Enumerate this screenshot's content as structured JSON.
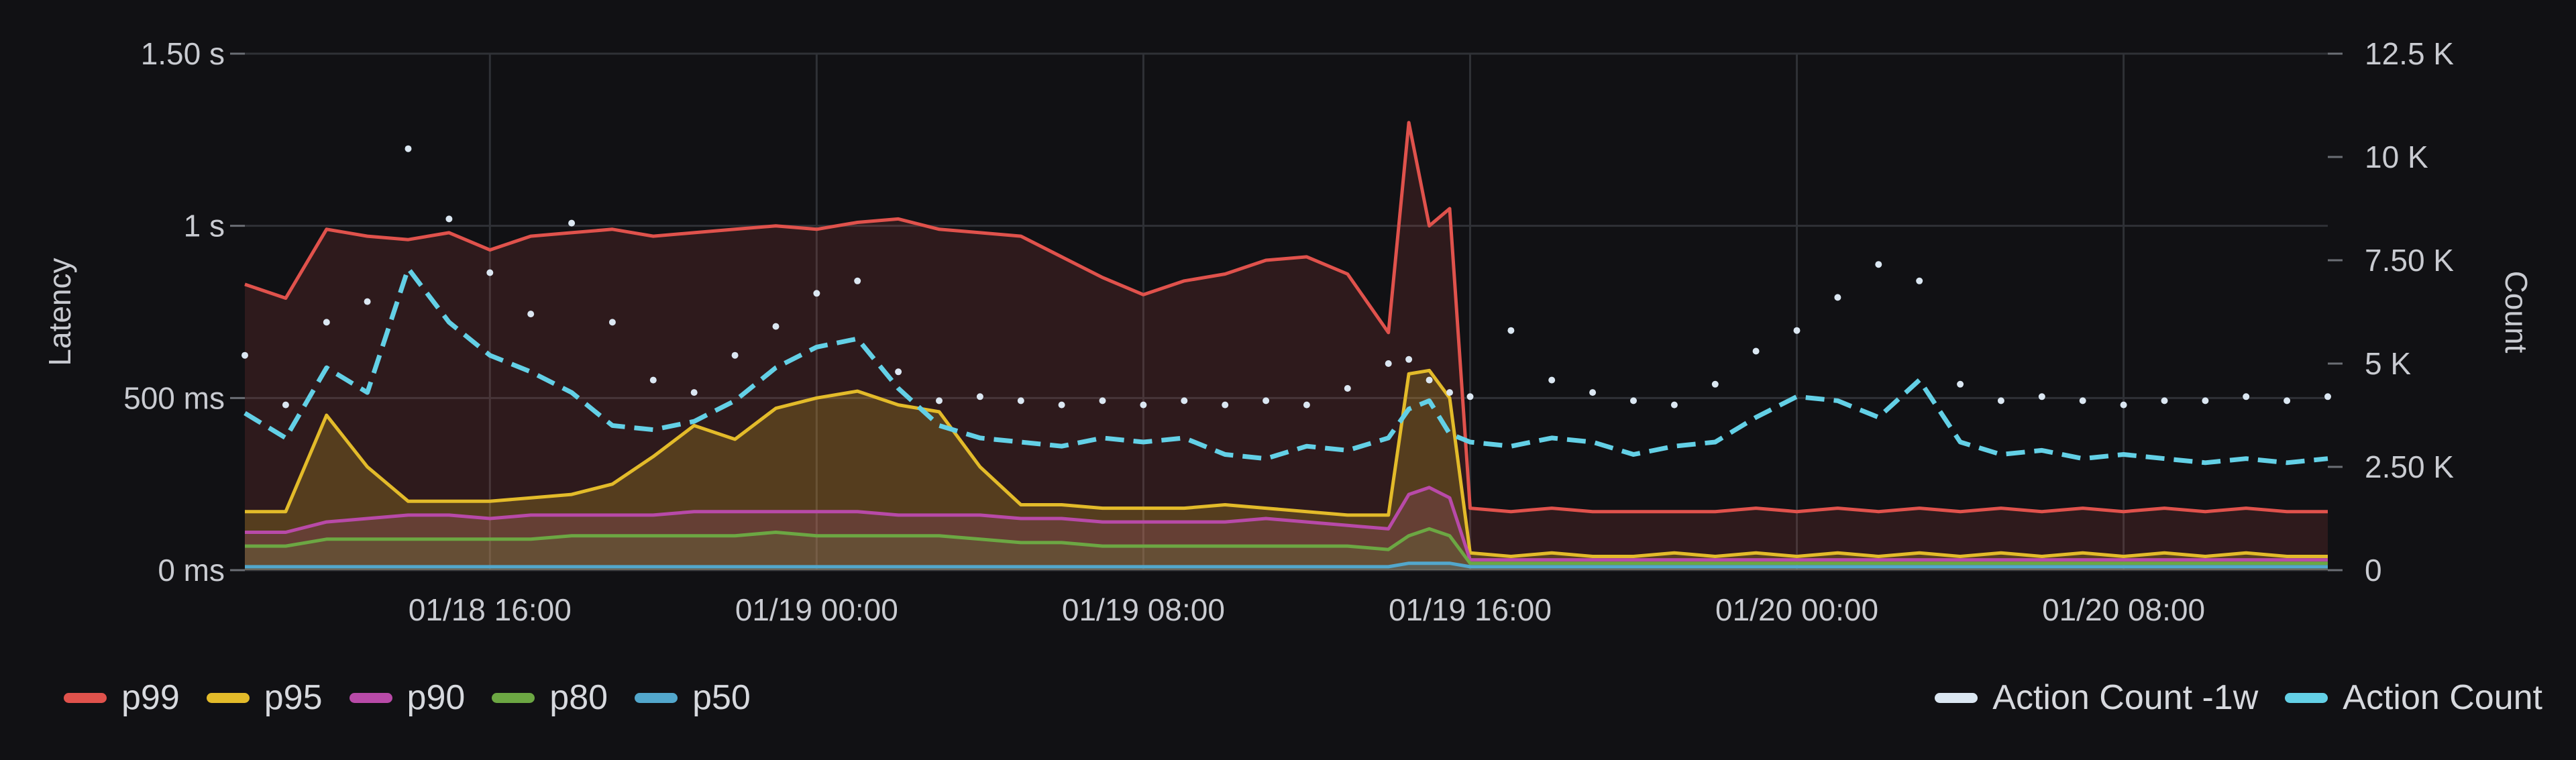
{
  "chart_data": {
    "type": "line",
    "xlabel": "",
    "ylabel": "Latency",
    "y2label": "Count",
    "grid": true,
    "legend_position": "bottom",
    "x_range": [
      "01/18 10:00",
      "01/20 12:00"
    ],
    "ylim": [
      0,
      1.5
    ],
    "y2lim": [
      0,
      12500
    ],
    "y_ticks": [
      {
        "value": 0,
        "label": "0 ms"
      },
      {
        "value": 0.5,
        "label": "500 ms"
      },
      {
        "value": 1.0,
        "label": "1 s"
      },
      {
        "value": 1.5,
        "label": "1.50 s"
      }
    ],
    "y2_ticks": [
      {
        "value": 0,
        "label": "0"
      },
      {
        "value": 2500,
        "label": "2.50 K"
      },
      {
        "value": 5000,
        "label": "5 K"
      },
      {
        "value": 7500,
        "label": "7.50 K"
      },
      {
        "value": 10000,
        "label": "10 K"
      },
      {
        "value": 12500,
        "label": "12.5 K"
      }
    ],
    "x_ticks": [
      {
        "value": 6,
        "label": "01/18 16:00"
      },
      {
        "value": 14,
        "label": "01/19 00:00"
      },
      {
        "value": 22,
        "label": "01/19 08:00"
      },
      {
        "value": 30,
        "label": "01/19 16:00"
      },
      {
        "value": 38,
        "label": "01/20 00:00"
      },
      {
        "value": 46,
        "label": "01/20 08:00"
      }
    ],
    "x": [
      0,
      1,
      2,
      3,
      4,
      5,
      6,
      7,
      8,
      9,
      10,
      11,
      12,
      13,
      14,
      15,
      16,
      17,
      18,
      19,
      20,
      21,
      22,
      23,
      24,
      25,
      26,
      27,
      28,
      28.5,
      29,
      29.5,
      30,
      31,
      32,
      33,
      34,
      35,
      36,
      37,
      38,
      39,
      40,
      41,
      42,
      43,
      44,
      45,
      46,
      47,
      48,
      49,
      50,
      51
    ],
    "series": [
      {
        "name": "p99",
        "axis": "left",
        "color": "#e0524c",
        "values": [
          0.83,
          0.79,
          0.99,
          0.97,
          0.96,
          0.98,
          0.93,
          0.97,
          0.98,
          0.99,
          0.97,
          0.98,
          0.99,
          1.0,
          0.99,
          1.01,
          1.02,
          0.99,
          0.98,
          0.97,
          0.91,
          0.85,
          0.8,
          0.84,
          0.86,
          0.9,
          0.91,
          0.86,
          0.69,
          1.3,
          1.0,
          1.05,
          0.18,
          0.17,
          0.18,
          0.17,
          0.17,
          0.17,
          0.17,
          0.18,
          0.17,
          0.18,
          0.17,
          0.18,
          0.17,
          0.18,
          0.17,
          0.18,
          0.17,
          0.18,
          0.17,
          0.18,
          0.17,
          0.17
        ]
      },
      {
        "name": "p95",
        "axis": "left",
        "color": "#e3bb2a",
        "values": [
          0.17,
          0.17,
          0.45,
          0.3,
          0.2,
          0.2,
          0.2,
          0.21,
          0.22,
          0.25,
          0.33,
          0.42,
          0.38,
          0.47,
          0.5,
          0.52,
          0.48,
          0.46,
          0.3,
          0.19,
          0.19,
          0.18,
          0.18,
          0.18,
          0.19,
          0.18,
          0.17,
          0.16,
          0.16,
          0.57,
          0.58,
          0.5,
          0.05,
          0.04,
          0.05,
          0.04,
          0.04,
          0.05,
          0.04,
          0.05,
          0.04,
          0.05,
          0.04,
          0.05,
          0.04,
          0.05,
          0.04,
          0.05,
          0.04,
          0.05,
          0.04,
          0.05,
          0.04,
          0.04
        ]
      },
      {
        "name": "p90",
        "axis": "left",
        "color": "#b84aa8",
        "values": [
          0.11,
          0.11,
          0.14,
          0.15,
          0.16,
          0.16,
          0.15,
          0.16,
          0.16,
          0.16,
          0.16,
          0.17,
          0.17,
          0.17,
          0.17,
          0.17,
          0.16,
          0.16,
          0.16,
          0.15,
          0.15,
          0.14,
          0.14,
          0.14,
          0.14,
          0.15,
          0.14,
          0.13,
          0.12,
          0.22,
          0.24,
          0.21,
          0.03,
          0.03,
          0.03,
          0.03,
          0.03,
          0.03,
          0.03,
          0.03,
          0.03,
          0.03,
          0.03,
          0.03,
          0.03,
          0.03,
          0.03,
          0.03,
          0.03,
          0.03,
          0.03,
          0.03,
          0.03,
          0.03
        ]
      },
      {
        "name": "p80",
        "axis": "left",
        "color": "#6ca743",
        "values": [
          0.07,
          0.07,
          0.09,
          0.09,
          0.09,
          0.09,
          0.09,
          0.09,
          0.1,
          0.1,
          0.1,
          0.1,
          0.1,
          0.11,
          0.1,
          0.1,
          0.1,
          0.1,
          0.09,
          0.08,
          0.08,
          0.07,
          0.07,
          0.07,
          0.07,
          0.07,
          0.07,
          0.07,
          0.06,
          0.1,
          0.12,
          0.1,
          0.02,
          0.02,
          0.02,
          0.02,
          0.02,
          0.02,
          0.02,
          0.02,
          0.02,
          0.02,
          0.02,
          0.02,
          0.02,
          0.02,
          0.02,
          0.02,
          0.02,
          0.02,
          0.02,
          0.02,
          0.02,
          0.02
        ]
      },
      {
        "name": "p50",
        "axis": "left",
        "color": "#52a7cc",
        "values": [
          0.01,
          0.01,
          0.01,
          0.01,
          0.01,
          0.01,
          0.01,
          0.01,
          0.01,
          0.01,
          0.01,
          0.01,
          0.01,
          0.01,
          0.01,
          0.01,
          0.01,
          0.01,
          0.01,
          0.01,
          0.01,
          0.01,
          0.01,
          0.01,
          0.01,
          0.01,
          0.01,
          0.01,
          0.01,
          0.02,
          0.02,
          0.02,
          0.01,
          0.01,
          0.01,
          0.01,
          0.01,
          0.01,
          0.01,
          0.01,
          0.01,
          0.01,
          0.01,
          0.01,
          0.01,
          0.01,
          0.01,
          0.01,
          0.01,
          0.01,
          0.01,
          0.01,
          0.01,
          0.01
        ]
      },
      {
        "name": "Action Count -1w",
        "axis": "right",
        "color": "#dbe7f2",
        "style": "dotted",
        "values": [
          5200,
          4000,
          6000,
          6500,
          10200,
          8500,
          7200,
          6200,
          8400,
          6000,
          4600,
          4300,
          5200,
          5900,
          6700,
          7000,
          4800,
          4100,
          4200,
          4100,
          4000,
          4100,
          4000,
          4100,
          4000,
          4100,
          4000,
          4400,
          5000,
          5100,
          4600,
          4300,
          4200,
          5800,
          4600,
          4300,
          4100,
          4000,
          4500,
          5300,
          5800,
          6600,
          7400,
          7000,
          4500,
          4100,
          4200,
          4100,
          4000,
          4100,
          4100,
          4200,
          4100,
          4200
        ]
      },
      {
        "name": "Action Count",
        "axis": "right",
        "color": "#63d0e6",
        "style": "dashed",
        "values": [
          3800,
          3200,
          4900,
          4300,
          7300,
          6000,
          5200,
          4800,
          4300,
          3500,
          3400,
          3600,
          4100,
          4900,
          5400,
          5600,
          4400,
          3500,
          3200,
          3100,
          3000,
          3200,
          3100,
          3200,
          2800,
          2700,
          3000,
          2900,
          3200,
          3900,
          4100,
          3300,
          3100,
          3000,
          3200,
          3100,
          2800,
          3000,
          3100,
          3700,
          4200,
          4100,
          3700,
          4600,
          3100,
          2800,
          2900,
          2700,
          2800,
          2700,
          2600,
          2700,
          2600,
          2700
        ]
      }
    ]
  }
}
